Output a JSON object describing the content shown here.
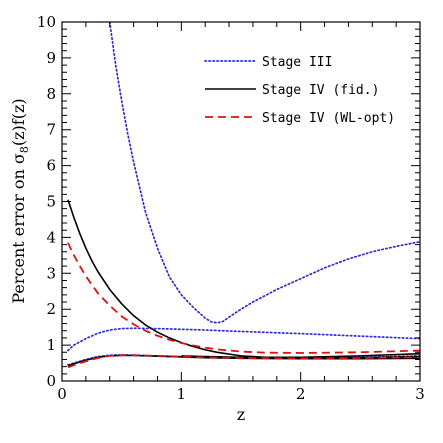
{
  "chart_data": {
    "type": "line",
    "xlabel": "z",
    "ylabel_prefix": "Percent error on σ",
    "ylabel_sub": "8",
    "ylabel_suffix": "(z)f(z)",
    "xlim": [
      0,
      3
    ],
    "ylim": [
      0,
      10
    ],
    "x_ticks": [
      {
        "value": 0,
        "label": "0"
      },
      {
        "value": 1,
        "label": "1"
      },
      {
        "value": 2,
        "label": "2"
      },
      {
        "value": 3,
        "label": "3"
      }
    ],
    "y_ticks": [
      {
        "value": 0,
        "label": "0"
      },
      {
        "value": 1,
        "label": "1"
      },
      {
        "value": 2,
        "label": "2"
      },
      {
        "value": 3,
        "label": "3"
      },
      {
        "value": 4,
        "label": "4"
      },
      {
        "value": 5,
        "label": "5"
      },
      {
        "value": 6,
        "label": "6"
      },
      {
        "value": 7,
        "label": "7"
      },
      {
        "value": 8,
        "label": "8"
      },
      {
        "value": 9,
        "label": "9"
      },
      {
        "value": 10,
        "label": "10"
      }
    ],
    "x_minor_step": 0.2,
    "y_minor_step": 0.2,
    "grid": false,
    "legend_position": "top-right",
    "legend": [
      {
        "label": "Stage III",
        "color": "#2b2bcf",
        "style": "dotted"
      },
      {
        "label": "Stage IV (fid.)",
        "color": "#000000",
        "style": "solid"
      },
      {
        "label": "Stage IV (WL-opt)",
        "color": "#dd1111",
        "style": "dashed"
      }
    ],
    "series": [
      {
        "legend": 0,
        "color": "#2b2bcf",
        "style": "dotted",
        "x": [
          0.4,
          0.45,
          0.5,
          0.55,
          0.6,
          0.7,
          0.8,
          0.9,
          1.0,
          1.1,
          1.2,
          1.25,
          1.3,
          1.35,
          1.4,
          1.5,
          1.6,
          1.8,
          2.0,
          2.2,
          2.4,
          2.6,
          2.8,
          3.0
        ],
        "y": [
          10.0,
          8.8,
          7.8,
          6.9,
          6.1,
          4.7,
          3.7,
          2.9,
          2.4,
          2.05,
          1.75,
          1.65,
          1.62,
          1.66,
          1.78,
          2.0,
          2.2,
          2.55,
          2.85,
          3.15,
          3.4,
          3.6,
          3.75,
          3.88
        ]
      },
      {
        "color": "#2b2bcf",
        "style": "dotted",
        "x": [
          0.05,
          0.1,
          0.2,
          0.3,
          0.4,
          0.5,
          0.6,
          0.8,
          1.0,
          1.2,
          1.5,
          2.0,
          2.5,
          3.0
        ],
        "y": [
          0.85,
          1.0,
          1.18,
          1.33,
          1.42,
          1.46,
          1.47,
          1.46,
          1.44,
          1.42,
          1.38,
          1.32,
          1.25,
          1.18
        ]
      },
      {
        "color": "#2b2bcf",
        "style": "dotted",
        "x": [
          0.05,
          0.1,
          0.2,
          0.3,
          0.4,
          0.5,
          0.6,
          0.8,
          1.0,
          1.2,
          1.5,
          2.0,
          2.5,
          3.0
        ],
        "y": [
          0.45,
          0.5,
          0.6,
          0.68,
          0.72,
          0.73,
          0.72,
          0.7,
          0.68,
          0.66,
          0.64,
          0.64,
          0.66,
          0.7
        ]
      },
      {
        "legend": 1,
        "color": "#000000",
        "style": "solid",
        "x": [
          0.05,
          0.1,
          0.15,
          0.2,
          0.25,
          0.3,
          0.4,
          0.5,
          0.6,
          0.7,
          0.8,
          0.9,
          1.0,
          1.1,
          1.2,
          1.3,
          1.5,
          1.7,
          2.0,
          2.5,
          3.0
        ],
        "y": [
          5.05,
          4.55,
          4.1,
          3.7,
          3.35,
          3.05,
          2.55,
          2.15,
          1.82,
          1.56,
          1.36,
          1.2,
          1.07,
          0.96,
          0.87,
          0.8,
          0.7,
          0.66,
          0.64,
          0.65,
          0.68
        ]
      },
      {
        "color": "#000000",
        "style": "solid",
        "x": [
          0.05,
          0.1,
          0.2,
          0.3,
          0.4,
          0.5,
          0.6,
          0.8,
          1.0,
          1.2,
          1.5,
          2.0,
          2.5,
          3.0
        ],
        "y": [
          0.42,
          0.48,
          0.58,
          0.66,
          0.7,
          0.71,
          0.71,
          0.69,
          0.67,
          0.65,
          0.63,
          0.62,
          0.62,
          0.63
        ]
      },
      {
        "color": "#000000",
        "style": "solid",
        "x": [
          1.0,
          1.2,
          1.5,
          2.0,
          2.5,
          3.0
        ],
        "y": [
          0.7,
          0.68,
          0.66,
          0.66,
          0.7,
          0.76
        ]
      },
      {
        "legend": 2,
        "color": "#dd1111",
        "style": "dashed",
        "x": [
          0.05,
          0.1,
          0.15,
          0.2,
          0.25,
          0.3,
          0.4,
          0.5,
          0.6,
          0.7,
          0.8,
          0.9,
          1.0,
          1.1,
          1.2,
          1.3,
          1.5,
          1.7,
          2.0,
          2.5,
          3.0
        ],
        "y": [
          3.85,
          3.5,
          3.2,
          2.92,
          2.68,
          2.45,
          2.1,
          1.8,
          1.58,
          1.4,
          1.26,
          1.15,
          1.06,
          0.99,
          0.93,
          0.88,
          0.82,
          0.79,
          0.78,
          0.8,
          0.85
        ]
      },
      {
        "color": "#dd1111",
        "style": "dashed",
        "x": [
          0.05,
          0.1,
          0.2,
          0.3,
          0.4,
          0.5,
          0.6,
          0.8,
          1.0,
          1.2,
          1.5,
          2.0,
          2.5,
          3.0
        ],
        "y": [
          0.38,
          0.44,
          0.55,
          0.64,
          0.7,
          0.72,
          0.72,
          0.7,
          0.68,
          0.66,
          0.64,
          0.63,
          0.64,
          0.66
        ]
      }
    ]
  }
}
